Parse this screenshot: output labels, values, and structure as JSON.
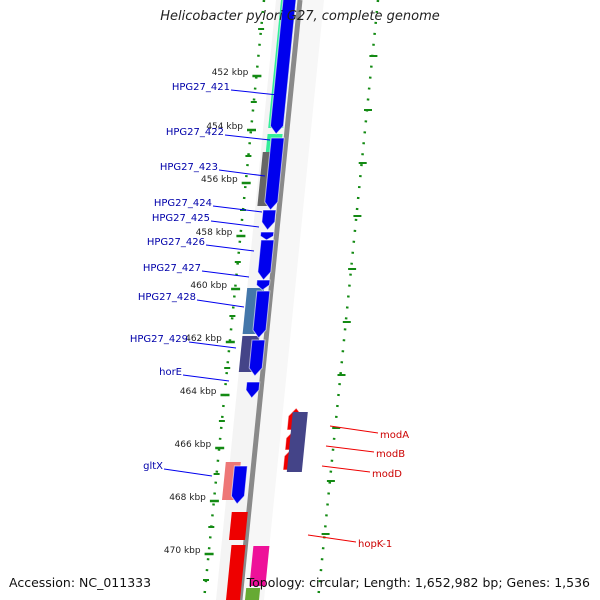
{
  "title": "Helicobacter pylori G27, complete genome",
  "accession": "Accession: NC_011333",
  "topology": "Topology: circular; Length: 1,652,982 bp; Genes: 1,536",
  "colors": {
    "backbone": "#8a8a8a",
    "forward_gene": "#0000ee",
    "reverse_gene": "#ee0000",
    "gene_label": "#0000aa",
    "reverse_label": "#cc0000",
    "tick": "#138a13",
    "ruler_text": "#222222"
  },
  "ruler": {
    "ticks": [
      {
        "label": "452 kbp"
      },
      {
        "label": "454 kbp"
      },
      {
        "label": "456 kbp"
      },
      {
        "label": "458 kbp"
      },
      {
        "label": "460 kbp"
      },
      {
        "label": "462 kbp"
      },
      {
        "label": "464 kbp"
      },
      {
        "label": "466 kbp"
      },
      {
        "label": "468 kbp"
      },
      {
        "label": "470 kbp"
      }
    ]
  },
  "forward_genes": [
    {
      "label": "HPG27_421"
    },
    {
      "label": "HPG27_422"
    },
    {
      "label": "HPG27_423"
    },
    {
      "label": "HPG27_424"
    },
    {
      "label": "HPG27_425"
    },
    {
      "label": "HPG27_426"
    },
    {
      "label": "HPG27_427"
    },
    {
      "label": "HPG27_428"
    },
    {
      "label": "HPG27_429"
    },
    {
      "label": "horE"
    },
    {
      "label": "gltX"
    }
  ],
  "reverse_genes": [
    {
      "label": "modA"
    },
    {
      "label": "modB"
    },
    {
      "label": "modD"
    },
    {
      "label": "hopK-1"
    }
  ]
}
